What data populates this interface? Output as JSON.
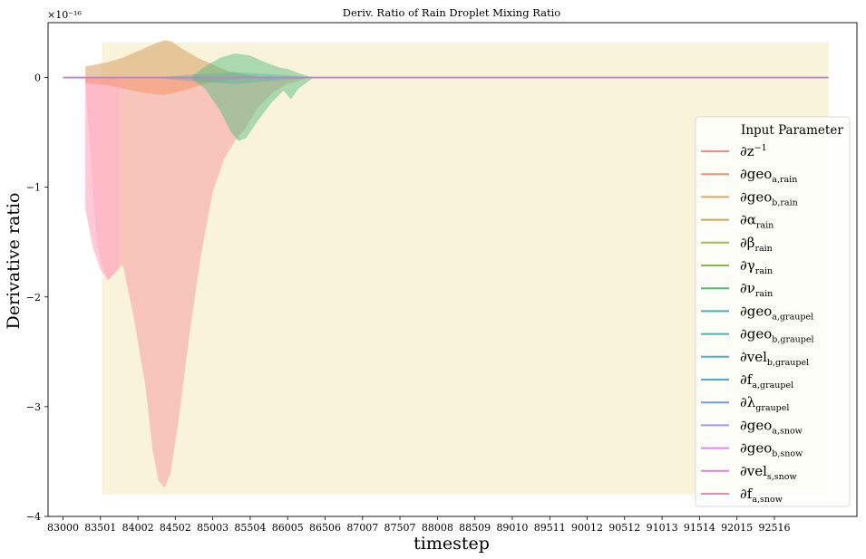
{
  "chart_data": {
    "type": "area",
    "title": "Deriv. Ratio of Rain Droplet Mixing Ratio",
    "xlabel": "timestep",
    "ylabel": "Derivative ratio",
    "y_exponent": "×10⁻¹⁶",
    "xlim": [
      82800,
      93620
    ],
    "ylim": [
      -4.0,
      0.5
    ],
    "x_ticks": [
      83000,
      83501,
      84002,
      84502,
      85003,
      85504,
      86005,
      86506,
      87007,
      87507,
      88008,
      88509,
      89010,
      89511,
      90012,
      90512,
      91013,
      91514,
      92015,
      92516
    ],
    "y_ticks": [
      0,
      -1,
      -2,
      -3,
      -4
    ],
    "y_tick_labels": [
      "0",
      "−1",
      "−2",
      "−3",
      "−4"
    ],
    "grid": false,
    "shaded_region": {
      "x": [
        83520,
        93240
      ],
      "y": [
        -3.8,
        0.32
      ],
      "color": "#f6edc4"
    },
    "legend": {
      "title": "Input Parameter",
      "position": "right",
      "entries": [
        {
          "main": "∂z",
          "sub": "",
          "sup": "−1",
          "color": "#f08a8a"
        },
        {
          "main": "∂geo",
          "sub": "a,rain",
          "sup": "",
          "color": "#f4966c"
        },
        {
          "main": "∂geo",
          "sub": "b,rain",
          "sup": "",
          "color": "#dba86c"
        },
        {
          "main": "∂α",
          "sub": "rain",
          "sup": "",
          "color": "#c9a85a"
        },
        {
          "main": "∂β",
          "sub": "rain",
          "sup": "",
          "color": "#a9b653"
        },
        {
          "main": "∂γ",
          "sub": "rain",
          "sup": "",
          "color": "#88b84a"
        },
        {
          "main": "∂ν",
          "sub": "rain",
          "sup": "",
          "color": "#4cba7a"
        },
        {
          "main": "∂geo",
          "sub": "a,graupel",
          "sup": "",
          "color": "#45b3a4"
        },
        {
          "main": "∂geo",
          "sub": "b,graupel",
          "sup": "",
          "color": "#47b3b8"
        },
        {
          "main": "∂vel",
          "sub": "b,graupel",
          "sup": "",
          "color": "#4bb0c8"
        },
        {
          "main": "∂f",
          "sub": "a,graupel",
          "sup": "",
          "color": "#52a8d8"
        },
        {
          "main": "∂λ",
          "sub": "graupel",
          "sup": "",
          "color": "#6f9ee8"
        },
        {
          "main": "∂geo",
          "sub": "a,snow",
          "sup": "",
          "color": "#a397ea"
        },
        {
          "main": "∂geo",
          "sub": "b,snow",
          "sup": "",
          "color": "#d98ae8"
        },
        {
          "main": "∂vel",
          "sub": "s,snow",
          "sup": "",
          "color": "#e77fd2"
        },
        {
          "main": "∂f",
          "sub": "a,snow",
          "sup": "",
          "color": "#ec86b8"
        }
      ]
    },
    "series": [
      {
        "color": "#f7a6a6",
        "opacity": 0.6,
        "upper": [
          [
            83300,
            0
          ],
          [
            86300,
            0
          ]
        ],
        "lower": [
          [
            83300,
            -0.05
          ],
          [
            83450,
            -1.5
          ],
          [
            83520,
            -1.7
          ],
          [
            83600,
            -1.85
          ],
          [
            83700,
            -1.78
          ],
          [
            83800,
            -1.7
          ],
          [
            83950,
            -2.2
          ],
          [
            84100,
            -2.8
          ],
          [
            84200,
            -3.4
          ],
          [
            84280,
            -3.68
          ],
          [
            84360,
            -3.74
          ],
          [
            84440,
            -3.6
          ],
          [
            84550,
            -3.1
          ],
          [
            84700,
            -2.3
          ],
          [
            84850,
            -1.6
          ],
          [
            85000,
            -1.05
          ],
          [
            85150,
            -0.75
          ],
          [
            85300,
            -0.58
          ],
          [
            85450,
            -0.45
          ],
          [
            85600,
            -0.28
          ],
          [
            85800,
            -0.14
          ],
          [
            86000,
            -0.06
          ],
          [
            86300,
            0
          ]
        ]
      },
      {
        "color": "#ffb3c8",
        "opacity": 0.7,
        "upper": [
          [
            83300,
            0
          ],
          [
            83750,
            0
          ]
        ],
        "lower": [
          [
            83300,
            -1.2
          ],
          [
            83400,
            -1.55
          ],
          [
            83500,
            -1.75
          ],
          [
            83600,
            -1.84
          ],
          [
            83700,
            -1.78
          ],
          [
            83750,
            -1.7
          ]
        ]
      },
      {
        "color": "#dcac74",
        "opacity": 0.65,
        "upper": [
          [
            83300,
            0.1
          ],
          [
            83600,
            0.14
          ],
          [
            83800,
            0.18
          ],
          [
            84000,
            0.24
          ],
          [
            84200,
            0.3
          ],
          [
            84350,
            0.34
          ],
          [
            84450,
            0.33
          ],
          [
            84600,
            0.26
          ],
          [
            84800,
            0.18
          ],
          [
            85000,
            0.12
          ],
          [
            85200,
            0.06
          ],
          [
            85400,
            0.03
          ],
          [
            85600,
            0.01
          ],
          [
            85800,
            0
          ]
        ],
        "lower": [
          [
            83300,
            0
          ],
          [
            85800,
            0
          ]
        ]
      },
      {
        "color": "#f4966c",
        "opacity": 0.55,
        "upper": [
          [
            83300,
            0
          ],
          [
            85600,
            0
          ]
        ],
        "lower": [
          [
            83300,
            -0.05
          ],
          [
            83600,
            -0.07
          ],
          [
            83800,
            -0.1
          ],
          [
            84000,
            -0.13
          ],
          [
            84200,
            -0.15
          ],
          [
            84350,
            -0.16
          ],
          [
            84500,
            -0.14
          ],
          [
            84700,
            -0.1
          ],
          [
            84900,
            -0.06
          ],
          [
            85100,
            -0.03
          ],
          [
            85400,
            -0.01
          ],
          [
            85600,
            0
          ]
        ]
      },
      {
        "color": "#4cba7a",
        "opacity": 0.45,
        "upper": [
          [
            84700,
            0
          ],
          [
            84900,
            0.1
          ],
          [
            85100,
            0.18
          ],
          [
            85300,
            0.22
          ],
          [
            85500,
            0.2
          ],
          [
            85700,
            0.14
          ],
          [
            85900,
            0.09
          ],
          [
            86000,
            0.08
          ],
          [
            86150,
            0.04
          ],
          [
            86350,
            0
          ]
        ],
        "lower": [
          [
            84700,
            0
          ],
          [
            84900,
            -0.1
          ],
          [
            85100,
            -0.3
          ],
          [
            85250,
            -0.5
          ],
          [
            85350,
            -0.58
          ],
          [
            85450,
            -0.55
          ],
          [
            85600,
            -0.4
          ],
          [
            85800,
            -0.22
          ],
          [
            85950,
            -0.12
          ],
          [
            86050,
            -0.2
          ],
          [
            86150,
            -0.1
          ],
          [
            86350,
            0
          ]
        ]
      },
      {
        "color": "#45b3a4",
        "opacity": 0.35,
        "upper": [
          [
            84200,
            0
          ],
          [
            84800,
            0.03
          ],
          [
            85300,
            0.05
          ],
          [
            86000,
            0.02
          ],
          [
            86400,
            0
          ]
        ],
        "lower": [
          [
            84200,
            0
          ],
          [
            84800,
            -0.04
          ],
          [
            85300,
            -0.06
          ],
          [
            86000,
            -0.02
          ],
          [
            86400,
            0
          ]
        ]
      }
    ],
    "lines": [
      {
        "color": "#c27fd6",
        "y": 0,
        "x_range": [
          83000,
          93240
        ]
      }
    ]
  }
}
